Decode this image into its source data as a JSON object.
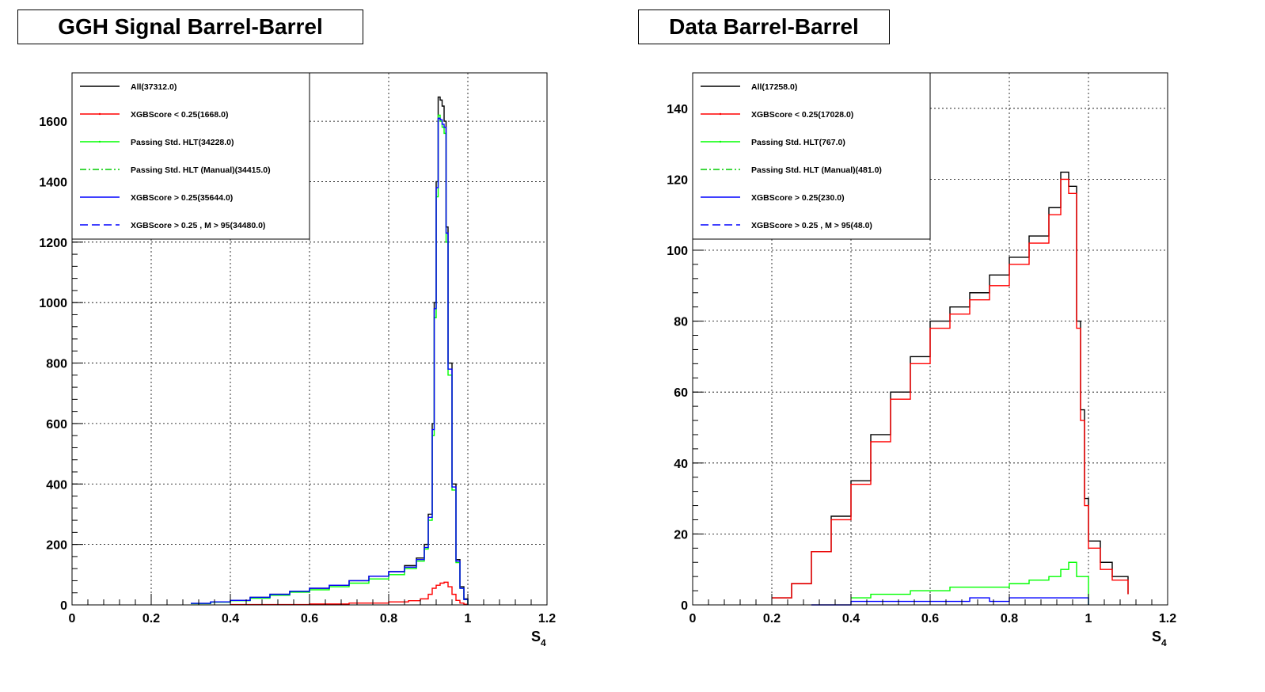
{
  "panels": [
    {
      "title": "GGH Signal Barrel-Barrel",
      "xlabel_main": "S",
      "xlabel_sub": "4",
      "legend": [
        {
          "label": "All(37312.0)",
          "color": "#000000",
          "dash": "solid"
        },
        {
          "label": "XGBScore < 0.25(1668.0)",
          "color": "#ff0000",
          "dash": "solid"
        },
        {
          "label": "Passing Std. HLT(34228.0)",
          "color": "#00ff00",
          "dash": "solid"
        },
        {
          "label": "Passing Std. HLT (Manual)(34415.0)",
          "color": "#00cc00",
          "dash": "dashdot"
        },
        {
          "label": "XGBScore > 0.25(35644.0)",
          "color": "#0000ff",
          "dash": "solid"
        },
        {
          "label": "XGBScore > 0.25 , M > 95(34480.0)",
          "color": "#0000ff",
          "dash": "dashed"
        }
      ]
    },
    {
      "title": "Data Barrel-Barrel",
      "xlabel_main": "S",
      "xlabel_sub": "4",
      "legend": [
        {
          "label": "All(17258.0)",
          "color": "#000000",
          "dash": "solid"
        },
        {
          "label": "XGBScore < 0.25(17028.0)",
          "color": "#ff0000",
          "dash": "solid"
        },
        {
          "label": "Passing Std. HLT(767.0)",
          "color": "#00ff00",
          "dash": "solid"
        },
        {
          "label": "Passing Std. HLT (Manual)(481.0)",
          "color": "#00cc00",
          "dash": "dashdot"
        },
        {
          "label": "XGBScore > 0.25(230.0)",
          "color": "#0000ff",
          "dash": "solid"
        },
        {
          "label": "XGBScore > 0.25 , M > 95(48.0)",
          "color": "#0000ff",
          "dash": "dashed"
        }
      ]
    }
  ],
  "chart_data": [
    {
      "type": "line",
      "title": "GGH Signal Barrel-Barrel",
      "xlabel": "S4",
      "ylabel": "",
      "xlim": [
        0,
        1.2
      ],
      "ylim": [
        0,
        1760
      ],
      "xticks": [
        0,
        0.2,
        0.4,
        0.6,
        0.8,
        1,
        1.2
      ],
      "xtick_labels": [
        "0",
        "0.2",
        "0.4",
        "0.6",
        "0.8",
        "1",
        "1.2"
      ],
      "yticks": [
        0,
        200,
        400,
        600,
        800,
        1000,
        1200,
        1400,
        1600
      ],
      "grid": true,
      "legend_position": "top-left",
      "series": [
        {
          "name": "All(37312.0)",
          "color": "#000000",
          "x": [
            0.3,
            0.35,
            0.4,
            0.45,
            0.5,
            0.55,
            0.6,
            0.65,
            0.7,
            0.75,
            0.8,
            0.84,
            0.87,
            0.89,
            0.9,
            0.91,
            0.915,
            0.92,
            0.925,
            0.93,
            0.935,
            0.94,
            0.945,
            0.95,
            0.96,
            0.97,
            0.98,
            0.99,
            1.0
          ],
          "y": [
            5,
            10,
            15,
            25,
            35,
            45,
            55,
            65,
            80,
            95,
            110,
            130,
            155,
            200,
            300,
            600,
            1000,
            1400,
            1680,
            1670,
            1650,
            1600,
            1250,
            800,
            400,
            150,
            60,
            20,
            0
          ]
        },
        {
          "name": "XGBScore < 0.25(1668.0)",
          "color": "#ff0000",
          "x": [
            0.4,
            0.6,
            0.7,
            0.8,
            0.85,
            0.88,
            0.9,
            0.91,
            0.92,
            0.93,
            0.94,
            0.95,
            0.96,
            0.97,
            0.98,
            0.99,
            1.0
          ],
          "y": [
            1,
            3,
            6,
            10,
            14,
            20,
            35,
            55,
            65,
            72,
            75,
            60,
            35,
            15,
            6,
            2,
            0
          ]
        },
        {
          "name": "Passing Std. HLT(34228.0)",
          "color": "#00ff00",
          "x": [
            0.3,
            0.35,
            0.4,
            0.45,
            0.5,
            0.55,
            0.6,
            0.65,
            0.7,
            0.75,
            0.8,
            0.84,
            0.87,
            0.89,
            0.9,
            0.91,
            0.915,
            0.92,
            0.925,
            0.93,
            0.935,
            0.94,
            0.945,
            0.95,
            0.96,
            0.97,
            0.98,
            0.99,
            1.0
          ],
          "y": [
            4,
            9,
            14,
            22,
            32,
            42,
            50,
            60,
            72,
            86,
            100,
            120,
            145,
            185,
            280,
            560,
            950,
            1350,
            1620,
            1600,
            1580,
            1560,
            1200,
            760,
            380,
            140,
            55,
            18,
            0
          ]
        },
        {
          "name": "XGBScore > 0.25(35644.0)",
          "color": "#0000ff",
          "x": [
            0.3,
            0.35,
            0.4,
            0.45,
            0.5,
            0.55,
            0.6,
            0.65,
            0.7,
            0.75,
            0.8,
            0.84,
            0.87,
            0.89,
            0.9,
            0.91,
            0.915,
            0.92,
            0.925,
            0.93,
            0.935,
            0.94,
            0.945,
            0.95,
            0.96,
            0.97,
            0.98,
            0.99,
            1.0
          ],
          "y": [
            5,
            10,
            15,
            25,
            35,
            45,
            55,
            65,
            80,
            95,
            110,
            125,
            150,
            190,
            290,
            580,
            980,
            1380,
            1610,
            1605,
            1590,
            1580,
            1230,
            780,
            390,
            145,
            55,
            18,
            0
          ]
        }
      ]
    },
    {
      "type": "line",
      "title": "Data Barrel-Barrel",
      "xlabel": "S4",
      "ylabel": "",
      "xlim": [
        0,
        1.2
      ],
      "ylim": [
        0,
        150
      ],
      "xticks": [
        0,
        0.2,
        0.4,
        0.6,
        0.8,
        1,
        1.2
      ],
      "xtick_labels": [
        "0",
        "0.2",
        "0.4",
        "0.6",
        "0.8",
        "1",
        "1.2"
      ],
      "yticks": [
        0,
        20,
        40,
        60,
        80,
        100,
        120,
        140
      ],
      "grid": true,
      "legend_position": "top-left",
      "series": [
        {
          "name": "All(17258.0)",
          "color": "#000000",
          "x": [
            0.2,
            0.25,
            0.3,
            0.35,
            0.4,
            0.45,
            0.5,
            0.55,
            0.6,
            0.65,
            0.7,
            0.75,
            0.8,
            0.85,
            0.9,
            0.93,
            0.95,
            0.97,
            0.98,
            0.99,
            1.0,
            1.03,
            1.06,
            1.1
          ],
          "y": [
            2,
            6,
            15,
            25,
            35,
            48,
            60,
            70,
            80,
            84,
            88,
            93,
            98,
            104,
            112,
            122,
            118,
            80,
            55,
            30,
            18,
            12,
            8,
            3
          ]
        },
        {
          "name": "XGBScore < 0.25(17028.0)",
          "color": "#ff0000",
          "x": [
            0.2,
            0.25,
            0.3,
            0.35,
            0.4,
            0.45,
            0.5,
            0.55,
            0.6,
            0.65,
            0.7,
            0.75,
            0.8,
            0.85,
            0.9,
            0.93,
            0.95,
            0.97,
            0.98,
            0.99,
            1.0,
            1.03,
            1.06,
            1.1
          ],
          "y": [
            2,
            6,
            15,
            24,
            34,
            46,
            58,
            68,
            78,
            82,
            86,
            90,
            96,
            102,
            110,
            120,
            116,
            78,
            52,
            28,
            16,
            10,
            7,
            3
          ]
        },
        {
          "name": "Passing Std. HLT(767.0)",
          "color": "#00ff00",
          "x": [
            0.4,
            0.45,
            0.5,
            0.55,
            0.6,
            0.65,
            0.7,
            0.75,
            0.8,
            0.85,
            0.9,
            0.93,
            0.95,
            0.97,
            1.0
          ],
          "y": [
            2,
            3,
            3,
            4,
            4,
            5,
            5,
            5,
            6,
            7,
            8,
            10,
            12,
            8,
            0
          ]
        },
        {
          "name": "XGBScore > 0.25(230.0)",
          "color": "#0000ff",
          "x": [
            0.3,
            0.4,
            0.45,
            0.5,
            0.55,
            0.6,
            0.65,
            0.7,
            0.75,
            0.8,
            0.85,
            0.9,
            0.95,
            1.0
          ],
          "y": [
            0,
            1,
            1,
            1,
            1,
            1,
            1,
            2,
            1,
            2,
            2,
            2,
            2,
            0
          ]
        }
      ]
    }
  ]
}
